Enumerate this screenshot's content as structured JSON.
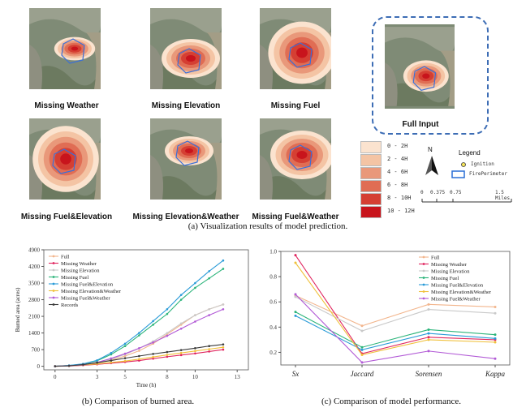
{
  "panel_a": {
    "maps": [
      {
        "id": "missing-weather",
        "label": "Missing Weather"
      },
      {
        "id": "missing-elevation",
        "label": "Missing Elevation"
      },
      {
        "id": "missing-fuel",
        "label": "Missing Fuel"
      },
      {
        "id": "full-input",
        "label": "Full Input"
      },
      {
        "id": "missing-fuel-elevation",
        "label": "Missing Fuel&Elevation"
      },
      {
        "id": "missing-elevation-weather",
        "label": "Missing Elevation&Weather"
      },
      {
        "id": "missing-fuel-weather",
        "label": "Missing Fuel&Weather"
      }
    ],
    "time_legend": [
      {
        "label": "0 - 2H",
        "color": "#fbe3cf"
      },
      {
        "label": "2 - 4H",
        "color": "#f4c4a4"
      },
      {
        "label": "4 - 6H",
        "color": "#e9987a"
      },
      {
        "label": "6 - 8H",
        "color": "#e06d54"
      },
      {
        "label": "8 - 10H",
        "color": "#d53f33"
      },
      {
        "label": "10 - 12H",
        "color": "#c8141c"
      }
    ],
    "north_label": "N",
    "legend_title": "Legend",
    "ignition_label": "Ignition",
    "perimeter_label": "FirePerimeter",
    "scale_labels": [
      "0",
      "0.375",
      "0.75",
      "1.5 Miles"
    ],
    "caption_prefix": "(a)",
    "caption_text": "Visualization results of model prediction."
  },
  "panel_b": {
    "caption_prefix": "(b)",
    "caption_text": "Comparison of burned area."
  },
  "panel_c": {
    "caption_prefix": "(c)",
    "caption_text": "Comparison of model performance."
  },
  "chart_data": [
    {
      "type": "line",
      "xlabel": "Time (h)",
      "ylabel": "Burned area (acres)",
      "xlim": [
        -0.8,
        13.8
      ],
      "ylim": [
        -150,
        4900
      ],
      "xticks": [
        0,
        3,
        5,
        8,
        10,
        13
      ],
      "yticks": [
        0,
        700,
        1400,
        2100,
        2800,
        3500,
        4200,
        4900
      ],
      "legend_position": "top-left",
      "series": [
        {
          "name": "Full",
          "color": "#f2b58c",
          "x": [
            0,
            1,
            2,
            3,
            4,
            5,
            6,
            7,
            8,
            9,
            10,
            11,
            12
          ],
          "values": [
            0,
            20,
            60,
            130,
            260,
            430,
            650,
            950,
            1350,
            1750,
            2150,
            2400,
            2600
          ]
        },
        {
          "name": "Missing Weather",
          "color": "#e0245e",
          "x": [
            0,
            1,
            2,
            3,
            4,
            5,
            6,
            7,
            8,
            9,
            10,
            11,
            12
          ],
          "values": [
            0,
            10,
            40,
            80,
            130,
            180,
            240,
            320,
            400,
            470,
            540,
            620,
            700
          ]
        },
        {
          "name": "Missing Elevation",
          "color": "#c9c9c9",
          "x": [
            0,
            1,
            2,
            3,
            4,
            5,
            6,
            7,
            8,
            9,
            10,
            11,
            12
          ],
          "values": [
            0,
            20,
            70,
            150,
            300,
            500,
            750,
            1050,
            1400,
            1800,
            2150,
            2400,
            2600
          ]
        },
        {
          "name": "Missing Fuel",
          "color": "#2bb47a",
          "x": [
            0,
            1,
            2,
            3,
            4,
            5,
            6,
            7,
            8,
            9,
            10,
            11,
            12
          ],
          "values": [
            0,
            30,
            90,
            230,
            500,
            850,
            1300,
            1750,
            2200,
            2800,
            3300,
            3700,
            4100
          ]
        },
        {
          "name": "Missing Fuel&Elevation",
          "color": "#2a9bd8",
          "x": [
            0,
            1,
            2,
            3,
            4,
            5,
            6,
            7,
            8,
            9,
            10,
            11,
            12
          ],
          "values": [
            0,
            35,
            100,
            250,
            560,
            950,
            1400,
            1900,
            2400,
            3000,
            3500,
            4000,
            4450
          ]
        },
        {
          "name": "Missing Elevation&Weather",
          "color": "#f0c03a",
          "x": [
            0,
            1,
            2,
            3,
            4,
            5,
            6,
            7,
            8,
            9,
            10,
            11,
            12
          ],
          "values": [
            0,
            15,
            50,
            100,
            160,
            220,
            300,
            390,
            480,
            560,
            640,
            720,
            800
          ]
        },
        {
          "name": "Missing Fuel&Weather",
          "color": "#b25ad6",
          "x": [
            0,
            1,
            2,
            3,
            4,
            5,
            6,
            7,
            8,
            9,
            10,
            11,
            12
          ],
          "values": [
            0,
            20,
            60,
            160,
            330,
            530,
            760,
            1000,
            1280,
            1580,
            1880,
            2150,
            2400
          ]
        },
        {
          "name": "Records",
          "color": "#3a3a3a",
          "x": [
            0,
            1,
            2,
            3,
            4,
            5,
            6,
            7,
            8,
            9,
            10,
            11,
            12
          ],
          "values": [
            0,
            20,
            70,
            150,
            240,
            340,
            430,
            520,
            600,
            680,
            760,
            850,
            920
          ]
        }
      ]
    },
    {
      "type": "line",
      "xlabel": "",
      "ylabel": "",
      "categories": [
        "Sx",
        "Jaccard",
        "Sorensen",
        "Kappa"
      ],
      "ylim": [
        0.1,
        1.0
      ],
      "yticks": [
        0.2,
        0.4,
        0.6,
        0.8,
        1.0
      ],
      "legend_position": "top-right",
      "series": [
        {
          "name": "Full",
          "color": "#f2b58c",
          "values": [
            0.65,
            0.41,
            0.58,
            0.56
          ]
        },
        {
          "name": "Missing Weather",
          "color": "#e0245e",
          "values": [
            0.97,
            0.19,
            0.32,
            0.3
          ]
        },
        {
          "name": "Missing Elevation",
          "color": "#c9c9c9",
          "values": [
            0.64,
            0.37,
            0.54,
            0.51
          ]
        },
        {
          "name": "Missing Fuel",
          "color": "#2bb47a",
          "values": [
            0.52,
            0.24,
            0.38,
            0.34
          ]
        },
        {
          "name": "Missing Fuel&Elevation",
          "color": "#2a9bd8",
          "values": [
            0.49,
            0.22,
            0.35,
            0.31
          ]
        },
        {
          "name": "Missing Elevation&Weather",
          "color": "#f0c03a",
          "values": [
            0.91,
            0.18,
            0.3,
            0.28
          ]
        },
        {
          "name": "Missing Fuel&Weather",
          "color": "#b25ad6",
          "values": [
            0.66,
            0.12,
            0.21,
            0.15
          ]
        }
      ]
    }
  ]
}
